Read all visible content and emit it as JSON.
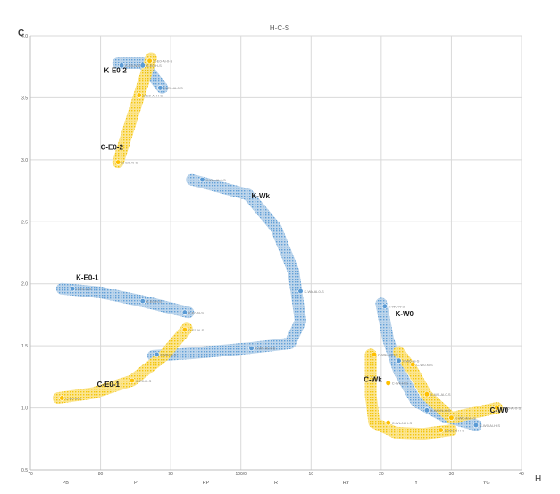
{
  "chart_data": {
    "type": "scatter",
    "title": "H-C-S",
    "xlabel": "H",
    "ylabel": "C",
    "grid": true,
    "xlim": [
      70,
      140
    ],
    "ylim": [
      0.5,
      4.0
    ],
    "x_ticks": [
      {
        "value": 70,
        "label": "70"
      },
      {
        "value": 80,
        "label": "80"
      },
      {
        "value": 90,
        "label": "90"
      },
      {
        "value": 100,
        "label": "100/0"
      },
      {
        "value": 110,
        "label": "10"
      },
      {
        "value": 120,
        "label": "20"
      },
      {
        "value": 130,
        "label": "30"
      },
      {
        "value": 140,
        "label": "40"
      }
    ],
    "hue_labels": [
      {
        "value": 75,
        "label": "PB"
      },
      {
        "value": 85,
        "label": "P"
      },
      {
        "value": 95,
        "label": "RP"
      },
      {
        "value": 105,
        "label": "R"
      },
      {
        "value": 115,
        "label": "RY"
      },
      {
        "value": 125,
        "label": "Y"
      },
      {
        "value": 135,
        "label": "YG"
      }
    ],
    "y_ticks": [
      {
        "value": 0.5,
        "label": "0.5"
      },
      {
        "value": 1.0,
        "label": "1.0"
      },
      {
        "value": 1.5,
        "label": "1.5"
      },
      {
        "value": 2.0,
        "label": "2.0"
      },
      {
        "value": 2.5,
        "label": "2.5"
      },
      {
        "value": 3.0,
        "label": "3.0"
      },
      {
        "value": 3.5,
        "label": "3.5"
      },
      {
        "value": 4.0,
        "label": "4.0"
      }
    ],
    "group_labels": [
      {
        "text": "K-E0-2",
        "x": 80.5,
        "y": 3.7
      },
      {
        "text": "C-E0-2",
        "x": 80.0,
        "y": 3.08
      },
      {
        "text": "K-Wk",
        "x": 101.5,
        "y": 2.69
      },
      {
        "text": "K-E0-1",
        "x": 76.5,
        "y": 2.03
      },
      {
        "text": "K-W0",
        "x": 122.0,
        "y": 1.74
      },
      {
        "text": "C-Wk",
        "x": 117.5,
        "y": 1.21
      },
      {
        "text": "C-E0-1",
        "x": 79.5,
        "y": 1.17
      },
      {
        "text": "C-W0",
        "x": 135.5,
        "y": 0.96
      }
    ],
    "series": [
      {
        "group": "K-E0-2",
        "color": "#5b9bd5",
        "points": [
          {
            "x": 83.0,
            "y": 3.76,
            "label": "K-E0-N-S"
          },
          {
            "x": 86.0,
            "y": 3.76,
            "label": "K-E0-H-S"
          },
          {
            "x": 88.5,
            "y": 3.58,
            "label": "K-E0-Al-0-S"
          }
        ],
        "band": [
          [
            82.5,
            3.78
          ],
          [
            86.0,
            3.78
          ],
          [
            88.8,
            3.58
          ]
        ]
      },
      {
        "group": "C-E0-2",
        "color": "#ffc000",
        "points": [
          {
            "x": 87.0,
            "y": 3.8,
            "label": "C-E0-Al-0-S"
          },
          {
            "x": 85.5,
            "y": 3.52,
            "label": "C-E0-Al-H-S"
          },
          {
            "x": 82.5,
            "y": 2.98,
            "label": "C-E0-Al-S"
          }
        ],
        "band": [
          [
            87.2,
            3.82
          ],
          [
            85.5,
            3.52
          ],
          [
            82.5,
            2.98
          ]
        ]
      },
      {
        "group": "K-Wk",
        "color": "#5b9bd5",
        "points": [
          {
            "x": 94.5,
            "y": 2.84,
            "label": "K-Wk-Al-0-S"
          },
          {
            "x": 108.5,
            "y": 1.94,
            "label": "K-Wk-Al-0-S"
          },
          {
            "x": 101.5,
            "y": 1.48,
            "label": "K-Wk-Al-H-S"
          },
          {
            "x": 88.0,
            "y": 1.43,
            "label": "K-Wk-H-S"
          }
        ],
        "band": [
          [
            93.0,
            2.84
          ],
          [
            101.0,
            2.72
          ],
          [
            105.0,
            2.45
          ],
          [
            107.5,
            2.1
          ],
          [
            108.5,
            1.7
          ],
          [
            107.0,
            1.52
          ],
          [
            101.0,
            1.48
          ],
          [
            93.0,
            1.44
          ],
          [
            87.5,
            1.42
          ]
        ]
      },
      {
        "group": "K-E0-1",
        "color": "#5b9bd5",
        "points": [
          {
            "x": 76.0,
            "y": 1.96,
            "label": "K-E0-N-S"
          },
          {
            "x": 86.0,
            "y": 1.86,
            "label": "K-E0-H-S"
          },
          {
            "x": 92.0,
            "y": 1.77,
            "label": "K-E0-N-S"
          }
        ],
        "band": [
          [
            74.5,
            1.96
          ],
          [
            80.0,
            1.93
          ],
          [
            86.0,
            1.86
          ],
          [
            92.5,
            1.77
          ]
        ]
      },
      {
        "group": "C-E0-1",
        "color": "#ffc000",
        "points": [
          {
            "x": 74.5,
            "y": 1.08,
            "label": "C-E0-N-S"
          },
          {
            "x": 84.5,
            "y": 1.22,
            "label": "C-E0-H-S"
          },
          {
            "x": 92.0,
            "y": 1.63,
            "label": "C-E0-N-S"
          }
        ],
        "band": [
          [
            74.0,
            1.08
          ],
          [
            79.0,
            1.12
          ],
          [
            84.5,
            1.22
          ],
          [
            89.0,
            1.42
          ],
          [
            92.3,
            1.64
          ]
        ]
      },
      {
        "group": "K-W0",
        "color": "#5b9bd5",
        "points": [
          {
            "x": 120.5,
            "y": 1.82,
            "label": "K-W0-N-S"
          },
          {
            "x": 122.5,
            "y": 1.38,
            "label": "K-W0-Al-S"
          },
          {
            "x": 126.5,
            "y": 0.98,
            "label": "K-W0-N-H-S"
          },
          {
            "x": 133.5,
            "y": 0.86,
            "label": "K-W0-Al-H-S"
          }
        ],
        "band": [
          [
            120.0,
            1.84
          ],
          [
            121.0,
            1.55
          ],
          [
            122.5,
            1.3
          ],
          [
            125.0,
            1.05
          ],
          [
            129.0,
            0.93
          ],
          [
            133.5,
            0.86
          ]
        ]
      },
      {
        "group": "C-Wk",
        "color": "#ffc000",
        "points": [
          {
            "x": 119.0,
            "y": 1.43,
            "label": "C-Wk-Al-0-S"
          },
          {
            "x": 121.0,
            "y": 1.2,
            "label": "C-Wk-H-S"
          },
          {
            "x": 121.0,
            "y": 0.88,
            "label": "C-Wk-N-H-S"
          },
          {
            "x": 128.5,
            "y": 0.82,
            "label": "C-Wk-N-H-S"
          }
        ],
        "band": [
          [
            118.5,
            1.43
          ],
          [
            118.5,
            1.1
          ],
          [
            119.0,
            0.88
          ],
          [
            122.0,
            0.8
          ],
          [
            126.0,
            0.79
          ],
          [
            130.0,
            0.82
          ]
        ]
      },
      {
        "group": "C-W0",
        "color": "#ffc000",
        "points": [
          {
            "x": 124.5,
            "y": 1.35,
            "label": "C-W0-N-S"
          },
          {
            "x": 126.5,
            "y": 1.11,
            "label": "C-W0-Al-0-S"
          },
          {
            "x": 130.0,
            "y": 0.92,
            "label": "C-W0-Al-H-S"
          },
          {
            "x": 136.5,
            "y": 1.0,
            "label": "C-W0-Al-0-S"
          }
        ],
        "band": [
          [
            122.5,
            1.45
          ],
          [
            124.5,
            1.3
          ],
          [
            126.5,
            1.1
          ],
          [
            130.0,
            0.92
          ],
          [
            136.5,
            1.0
          ]
        ]
      }
    ]
  }
}
